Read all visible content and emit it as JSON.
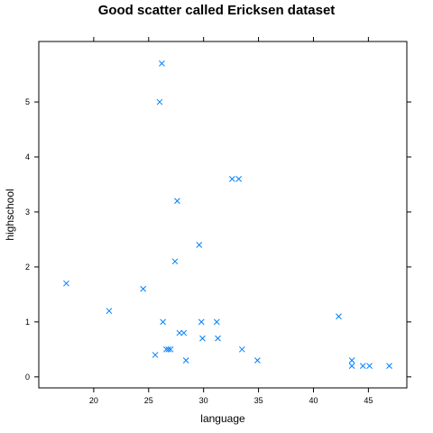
{
  "chart_data": {
    "type": "scatter",
    "title": "Good scatter called Ericksen dataset",
    "xlabel": "language",
    "ylabel": "highschool",
    "xlim": [
      15,
      48.5
    ],
    "ylim": [
      -0.2,
      6.1
    ],
    "xticks": [
      20,
      25,
      30,
      35,
      40,
      45
    ],
    "yticks": [
      0,
      1,
      2,
      3,
      4,
      5
    ],
    "marker": "x",
    "marker_color": "#0080ff",
    "grid": false,
    "points": [
      {
        "x": 17.5,
        "y": 1.7
      },
      {
        "x": 21.4,
        "y": 1.2
      },
      {
        "x": 24.5,
        "y": 1.6
      },
      {
        "x": 25.6,
        "y": 0.4
      },
      {
        "x": 26.0,
        "y": 5.0
      },
      {
        "x": 26.2,
        "y": 5.7
      },
      {
        "x": 26.3,
        "y": 1.0
      },
      {
        "x": 26.6,
        "y": 0.5
      },
      {
        "x": 26.8,
        "y": 0.5
      },
      {
        "x": 27.0,
        "y": 0.5
      },
      {
        "x": 27.4,
        "y": 2.1
      },
      {
        "x": 27.6,
        "y": 3.2
      },
      {
        "x": 27.8,
        "y": 0.8
      },
      {
        "x": 28.2,
        "y": 0.8
      },
      {
        "x": 28.4,
        "y": 0.3
      },
      {
        "x": 29.6,
        "y": 2.4
      },
      {
        "x": 29.8,
        "y": 1.0
      },
      {
        "x": 29.9,
        "y": 0.7
      },
      {
        "x": 31.2,
        "y": 1.0
      },
      {
        "x": 31.3,
        "y": 0.7
      },
      {
        "x": 32.6,
        "y": 3.6
      },
      {
        "x": 33.2,
        "y": 3.6
      },
      {
        "x": 33.5,
        "y": 0.5
      },
      {
        "x": 34.9,
        "y": 0.3
      },
      {
        "x": 42.3,
        "y": 1.1
      },
      {
        "x": 43.5,
        "y": 0.3
      },
      {
        "x": 43.5,
        "y": 0.2
      },
      {
        "x": 44.5,
        "y": 0.2
      },
      {
        "x": 45.1,
        "y": 0.2
      },
      {
        "x": 46.9,
        "y": 0.2
      }
    ]
  }
}
